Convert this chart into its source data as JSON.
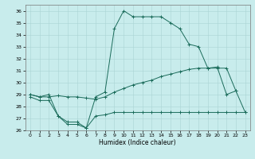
{
  "xlabel": "Humidex (Indice chaleur)",
  "bg_color": "#c8ecec",
  "grid_color": "#aad4d4",
  "line_color": "#1a6b5a",
  "xlim": [
    -0.5,
    23.5
  ],
  "ylim": [
    26,
    36.5
  ],
  "yticks": [
    26,
    27,
    28,
    29,
    30,
    31,
    32,
    33,
    34,
    35,
    36
  ],
  "xticks": [
    0,
    1,
    2,
    3,
    4,
    5,
    6,
    7,
    8,
    9,
    10,
    11,
    12,
    13,
    14,
    15,
    16,
    17,
    18,
    19,
    20,
    21,
    22,
    23
  ],
  "line_max_x": [
    0,
    1,
    2,
    3,
    4,
    5,
    6,
    7,
    8,
    9,
    10,
    11,
    12,
    13,
    14,
    15,
    16,
    17,
    18,
    19,
    20,
    21,
    22,
    23
  ],
  "line_max_y": [
    29.0,
    28.8,
    29.0,
    27.2,
    26.7,
    26.7,
    26.2,
    28.8,
    29.2,
    34.5,
    36.0,
    35.5,
    35.5,
    35.5,
    35.5,
    35.0,
    34.5,
    33.2,
    33.0,
    31.2,
    31.3,
    29.0,
    29.3,
    27.5
  ],
  "line_mid_x": [
    0,
    1,
    2,
    3,
    4,
    5,
    6,
    7,
    8,
    9,
    10,
    11,
    12,
    13,
    14,
    15,
    16,
    17,
    18,
    19,
    20,
    21,
    22,
    23
  ],
  "line_mid_y": [
    29.0,
    28.8,
    28.8,
    28.9,
    28.8,
    28.8,
    28.7,
    28.6,
    28.8,
    29.2,
    29.5,
    29.8,
    30.0,
    30.2,
    30.5,
    30.7,
    30.9,
    31.1,
    31.2,
    31.2,
    31.2,
    31.2,
    29.3,
    null
  ],
  "line_min_x": [
    0,
    1,
    2,
    3,
    4,
    5,
    6,
    7,
    8,
    9,
    10,
    11,
    12,
    13,
    14,
    15,
    16,
    17,
    18,
    19,
    20,
    21,
    22,
    23
  ],
  "line_min_y": [
    28.8,
    28.5,
    28.5,
    27.2,
    26.5,
    26.5,
    26.2,
    27.2,
    27.3,
    27.5,
    27.5,
    27.5,
    27.5,
    27.5,
    27.5,
    27.5,
    27.5,
    27.5,
    27.5,
    27.5,
    27.5,
    27.5,
    27.5,
    27.5
  ]
}
